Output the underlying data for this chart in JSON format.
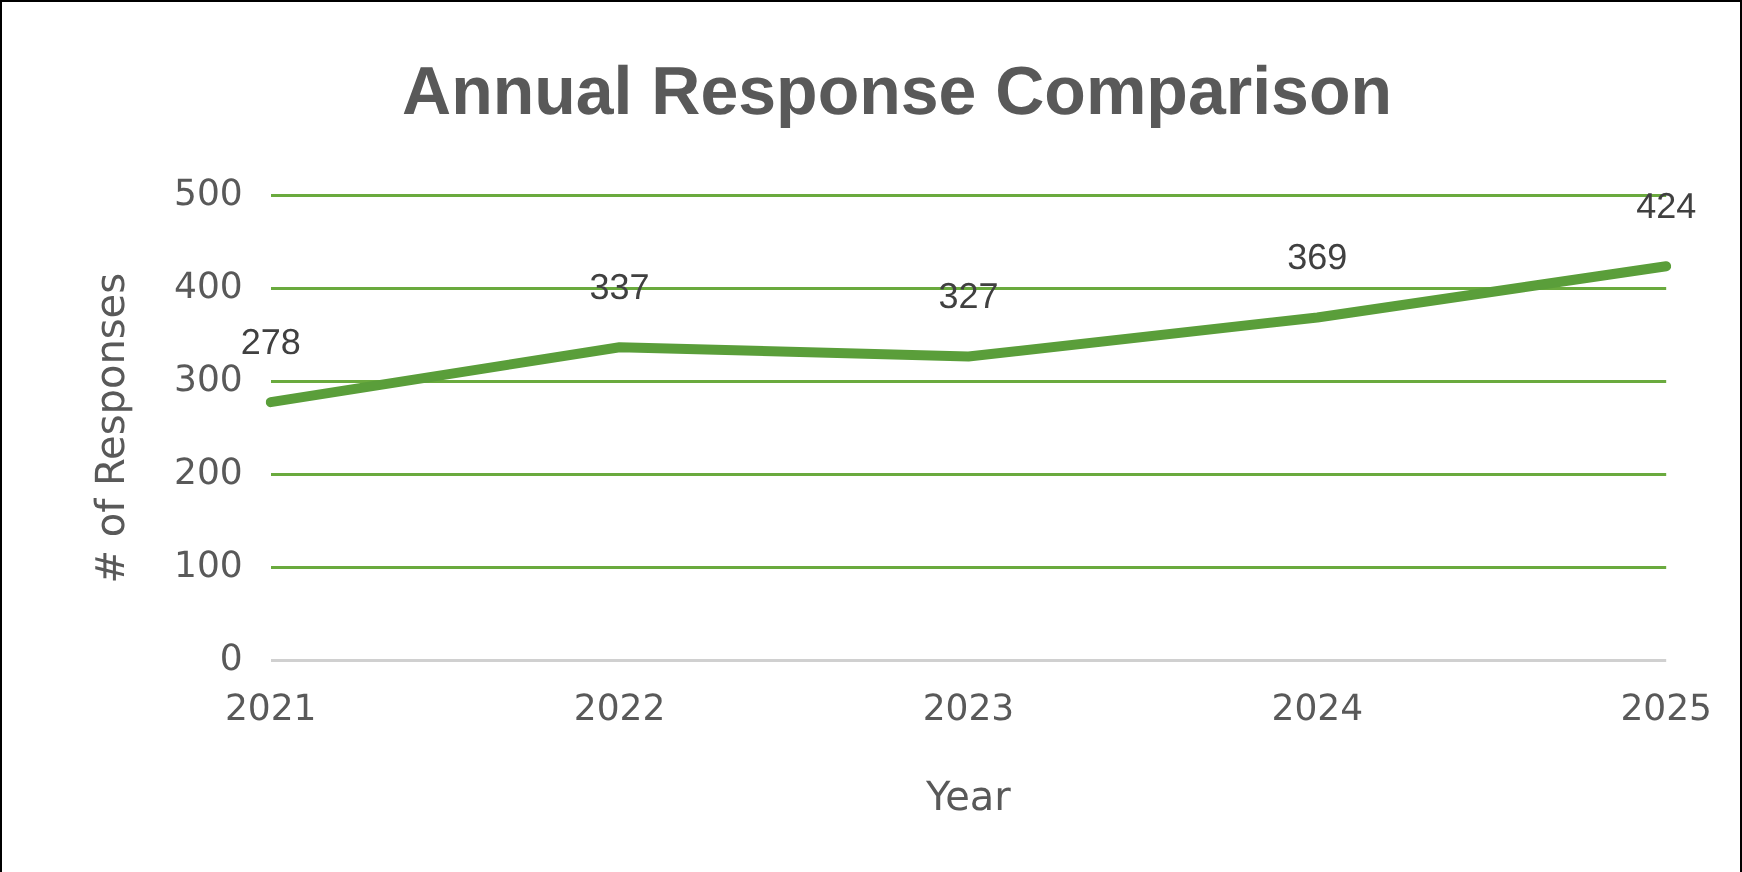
{
  "chart_data": {
    "type": "line",
    "title": "Annual Response Comparison",
    "xlabel": "Year",
    "ylabel": "# of Responses",
    "categories": [
      "2021",
      "2022",
      "2023",
      "2024",
      "2025"
    ],
    "series": [
      {
        "color": "#5a9e3a",
        "values": [
          278,
          337,
          327,
          369,
          424
        ]
      }
    ],
    "ylim": [
      0,
      500
    ],
    "yticks": [
      0,
      100,
      200,
      300,
      400,
      500
    ],
    "grid": "y",
    "legend": false,
    "marker": "none",
    "line_style": "solid",
    "data_labels": true
  }
}
